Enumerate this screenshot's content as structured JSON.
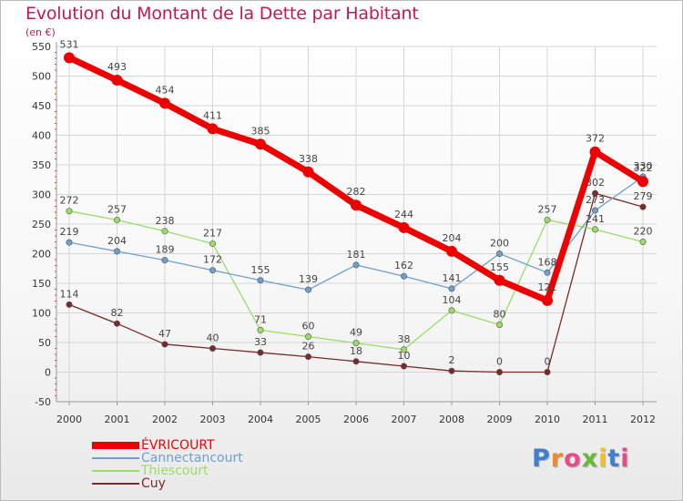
{
  "chart_data": {
    "type": "line",
    "title": "Evolution du Montant de la Dette par Habitant",
    "subtitle": "(en €)",
    "x": [
      "2000",
      "2001",
      "2002",
      "2003",
      "2004",
      "2005",
      "2006",
      "2007",
      "2008",
      "2009",
      "2010",
      "2011",
      "2012"
    ],
    "ylim": [
      -50,
      550
    ],
    "yticks": [
      -50,
      0,
      50,
      100,
      150,
      200,
      250,
      300,
      350,
      400,
      450,
      500,
      550
    ],
    "grid": true,
    "legend_position": "bottom-left",
    "series": [
      {
        "name": "ÉVRICOURT",
        "color": "#ee0000",
        "values": [
          531,
          493,
          454,
          411,
          385,
          338,
          282,
          244,
          204,
          155,
          121,
          372,
          322
        ]
      },
      {
        "name": "Cannectancourt",
        "color": "#6f9fd0",
        "values": [
          219,
          204,
          189,
          172,
          155,
          139,
          181,
          162,
          141,
          200,
          168,
          273,
          330
        ]
      },
      {
        "name": "Thiescourt",
        "color": "#99dd66",
        "values": [
          272,
          257,
          238,
          217,
          71,
          60,
          49,
          38,
          104,
          80,
          257,
          241,
          220
        ]
      },
      {
        "name": "Cuy",
        "color": "#7a2a2a",
        "values": [
          114,
          82,
          47,
          40,
          33,
          26,
          18,
          10,
          2,
          0,
          0,
          302,
          279
        ]
      }
    ]
  },
  "logo_text": "Proxiti"
}
